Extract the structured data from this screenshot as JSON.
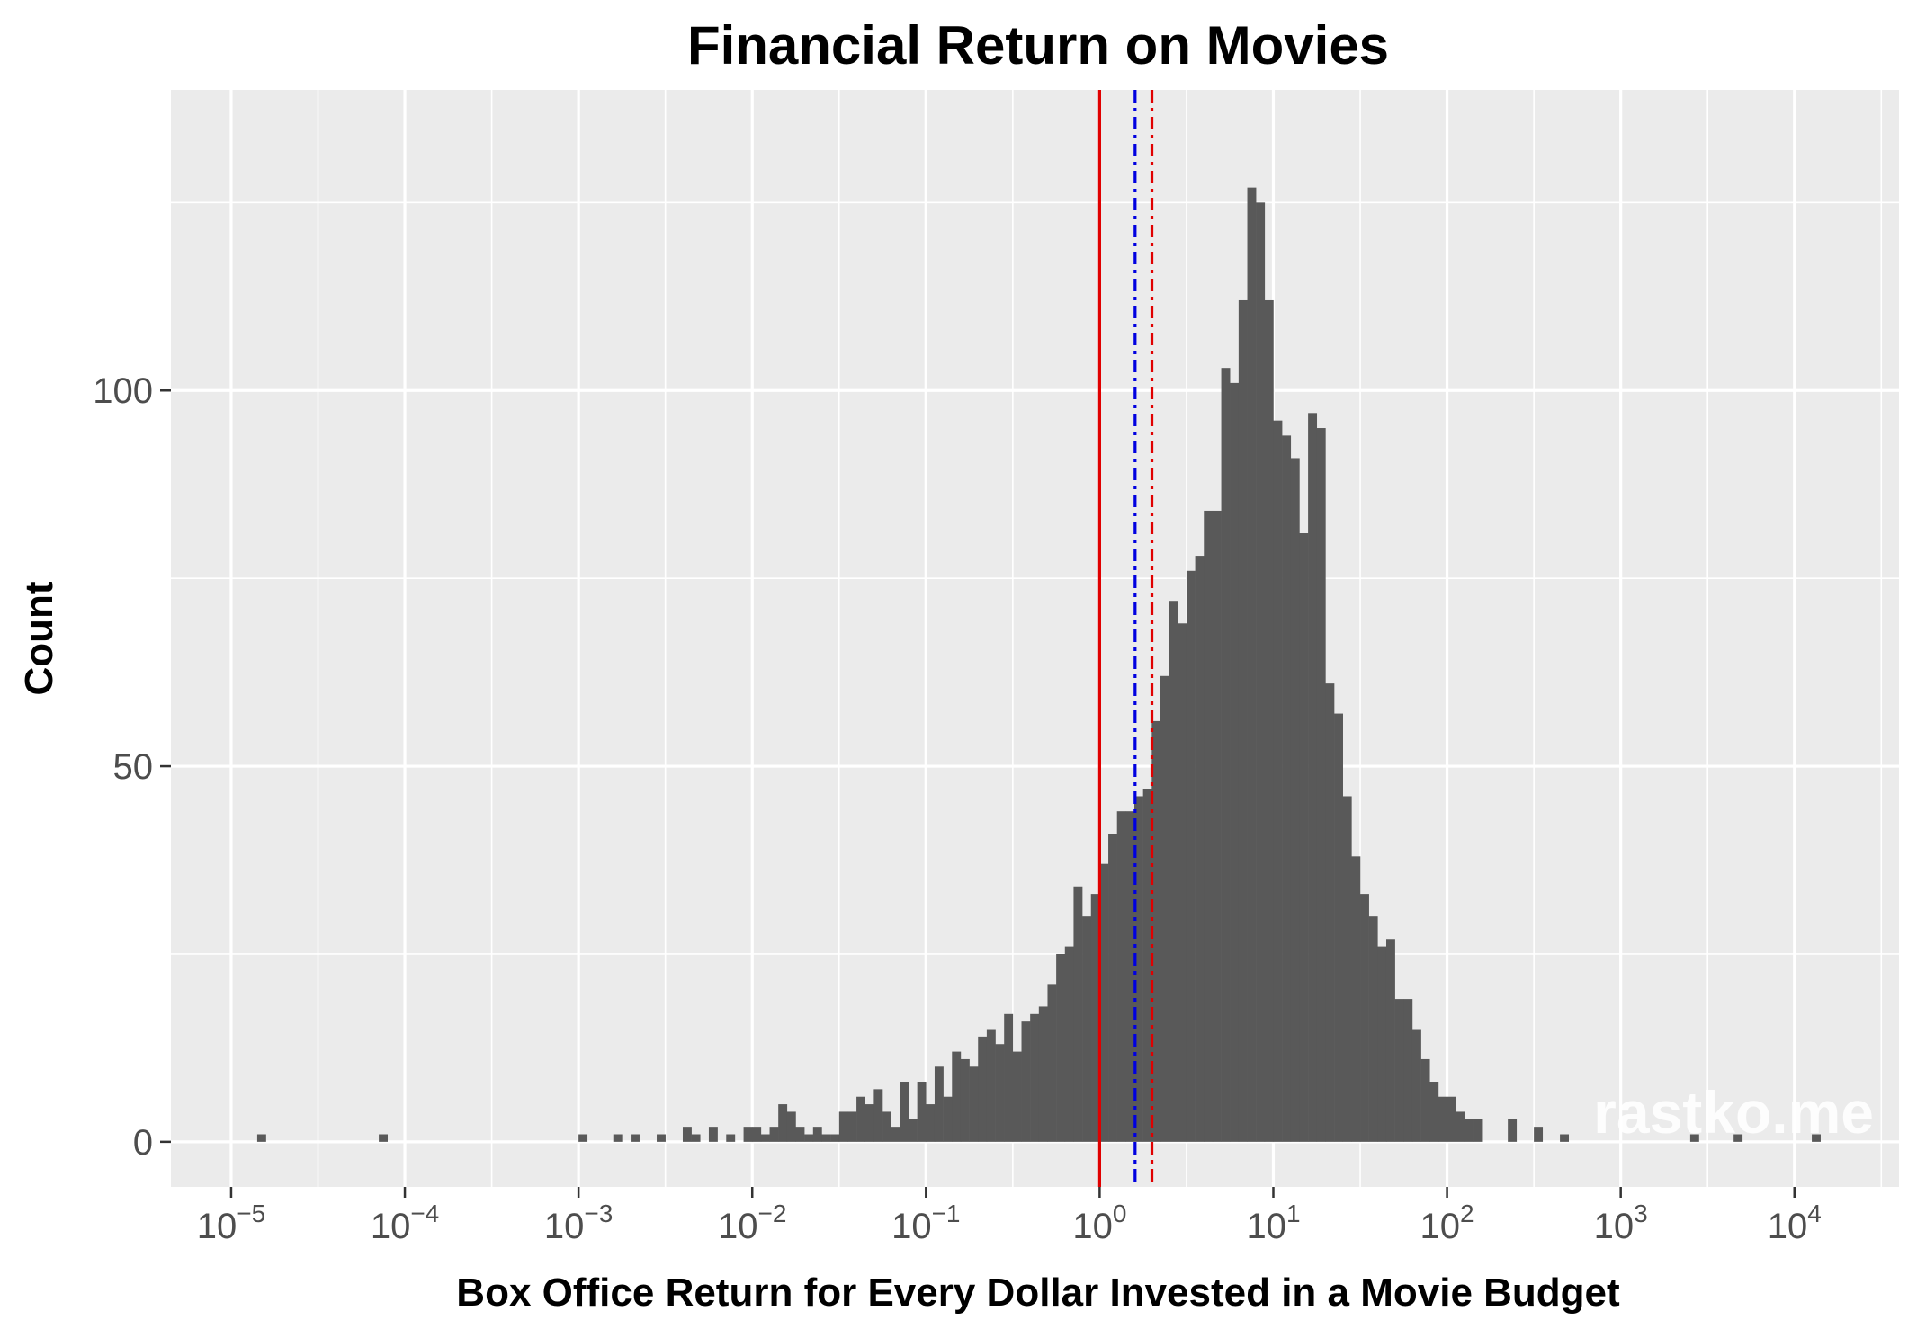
{
  "chart_data": {
    "type": "bar",
    "title": "Financial Return on Movies",
    "xlabel": "Box Office Return for Every Dollar Invested in a Movie Budget",
    "ylabel": "Count",
    "x_scale": "log10",
    "xlim": [
      4.5e-06,
      40000
    ],
    "ylim": [
      -6,
      140
    ],
    "x_ticks": [
      {
        "base": "10",
        "exp": "−5",
        "value": 1e-05
      },
      {
        "base": "10",
        "exp": "−4",
        "value": 0.0001
      },
      {
        "base": "10",
        "exp": "−3",
        "value": 0.001
      },
      {
        "base": "10",
        "exp": "−2",
        "value": 0.01
      },
      {
        "base": "10",
        "exp": "−1",
        "value": 0.1
      },
      {
        "base": "10",
        "exp": "0",
        "value": 1
      },
      {
        "base": "10",
        "exp": "1",
        "value": 10
      },
      {
        "base": "10",
        "exp": "2",
        "value": 100
      },
      {
        "base": "10",
        "exp": "3",
        "value": 1000
      },
      {
        "base": "10",
        "exp": "4",
        "value": 10000
      }
    ],
    "y_ticks": [
      {
        "label": "0",
        "value": 0
      },
      {
        "label": "50",
        "value": 50
      },
      {
        "label": "100",
        "value": 100
      }
    ],
    "y_minor_ticks": [
      25,
      75,
      125
    ],
    "grid": true,
    "bin_width_log10": 0.0493,
    "bins_log10_start": [
      -4.85,
      -4.15,
      -3.0,
      -2.8,
      -2.7,
      -2.55,
      -2.4,
      -2.35,
      -2.25,
      -2.15,
      -2.05,
      -2.0,
      -1.95,
      -1.9,
      -1.85,
      -1.8,
      -1.75,
      -1.7,
      -1.65,
      -1.6,
      -1.55,
      -1.5,
      -1.45,
      -1.4,
      -1.35,
      -1.3,
      -1.25,
      -1.2,
      -1.15,
      -1.1,
      -1.05,
      -1.0,
      -0.95,
      -0.9,
      -0.85,
      -0.8,
      -0.75,
      -0.7,
      -0.65,
      -0.6,
      -0.55,
      -0.5,
      -0.45,
      -0.4,
      -0.35,
      -0.3,
      -0.25,
      -0.2,
      -0.15,
      -0.1,
      -0.05,
      0.0,
      0.05,
      0.1,
      0.15,
      0.2,
      0.25,
      0.3,
      0.35,
      0.4,
      0.45,
      0.5,
      0.55,
      0.6,
      0.65,
      0.7,
      0.75,
      0.8,
      0.85,
      0.9,
      0.95,
      1.0,
      1.05,
      1.1,
      1.15,
      1.2,
      1.25,
      1.3,
      1.35,
      1.4,
      1.45,
      1.5,
      1.55,
      1.6,
      1.65,
      1.7,
      1.75,
      1.8,
      1.85,
      1.9,
      1.95,
      2.0,
      2.05,
      2.1,
      2.15,
      2.35,
      2.5,
      2.65,
      3.4,
      3.65,
      4.1
    ],
    "counts": [
      1,
      1,
      1,
      1,
      1,
      1,
      2,
      1,
      2,
      1,
      2,
      2,
      1,
      2,
      5,
      4,
      2,
      1,
      2,
      1,
      1,
      4,
      4,
      6,
      5,
      7,
      4,
      2,
      8,
      3,
      8,
      5,
      10,
      6,
      12,
      11,
      10,
      14,
      15,
      13,
      17,
      12,
      16,
      17,
      18,
      21,
      25,
      26,
      34,
      30,
      33,
      37,
      41,
      44,
      44,
      46,
      47,
      56,
      62,
      72,
      69,
      76,
      78,
      84,
      84,
      103,
      101,
      112,
      127,
      125,
      112,
      96,
      94,
      91,
      81,
      97,
      95,
      61,
      57,
      46,
      38,
      33,
      30,
      26,
      27,
      19,
      19,
      15,
      11,
      8,
      6,
      6,
      4,
      3,
      3,
      3,
      2,
      1,
      1,
      1,
      1
    ],
    "reference_lines": [
      {
        "x": 1.0,
        "color": "#e00000",
        "style": "solid"
      },
      {
        "x": 1.6,
        "color": "#0000e0",
        "style": "dashdot"
      },
      {
        "x": 2.0,
        "color": "#e00000",
        "style": "dashdot"
      }
    ],
    "bar_color": "#595959",
    "panel_background": "#ebebeb",
    "watermark": "rastko.me"
  }
}
